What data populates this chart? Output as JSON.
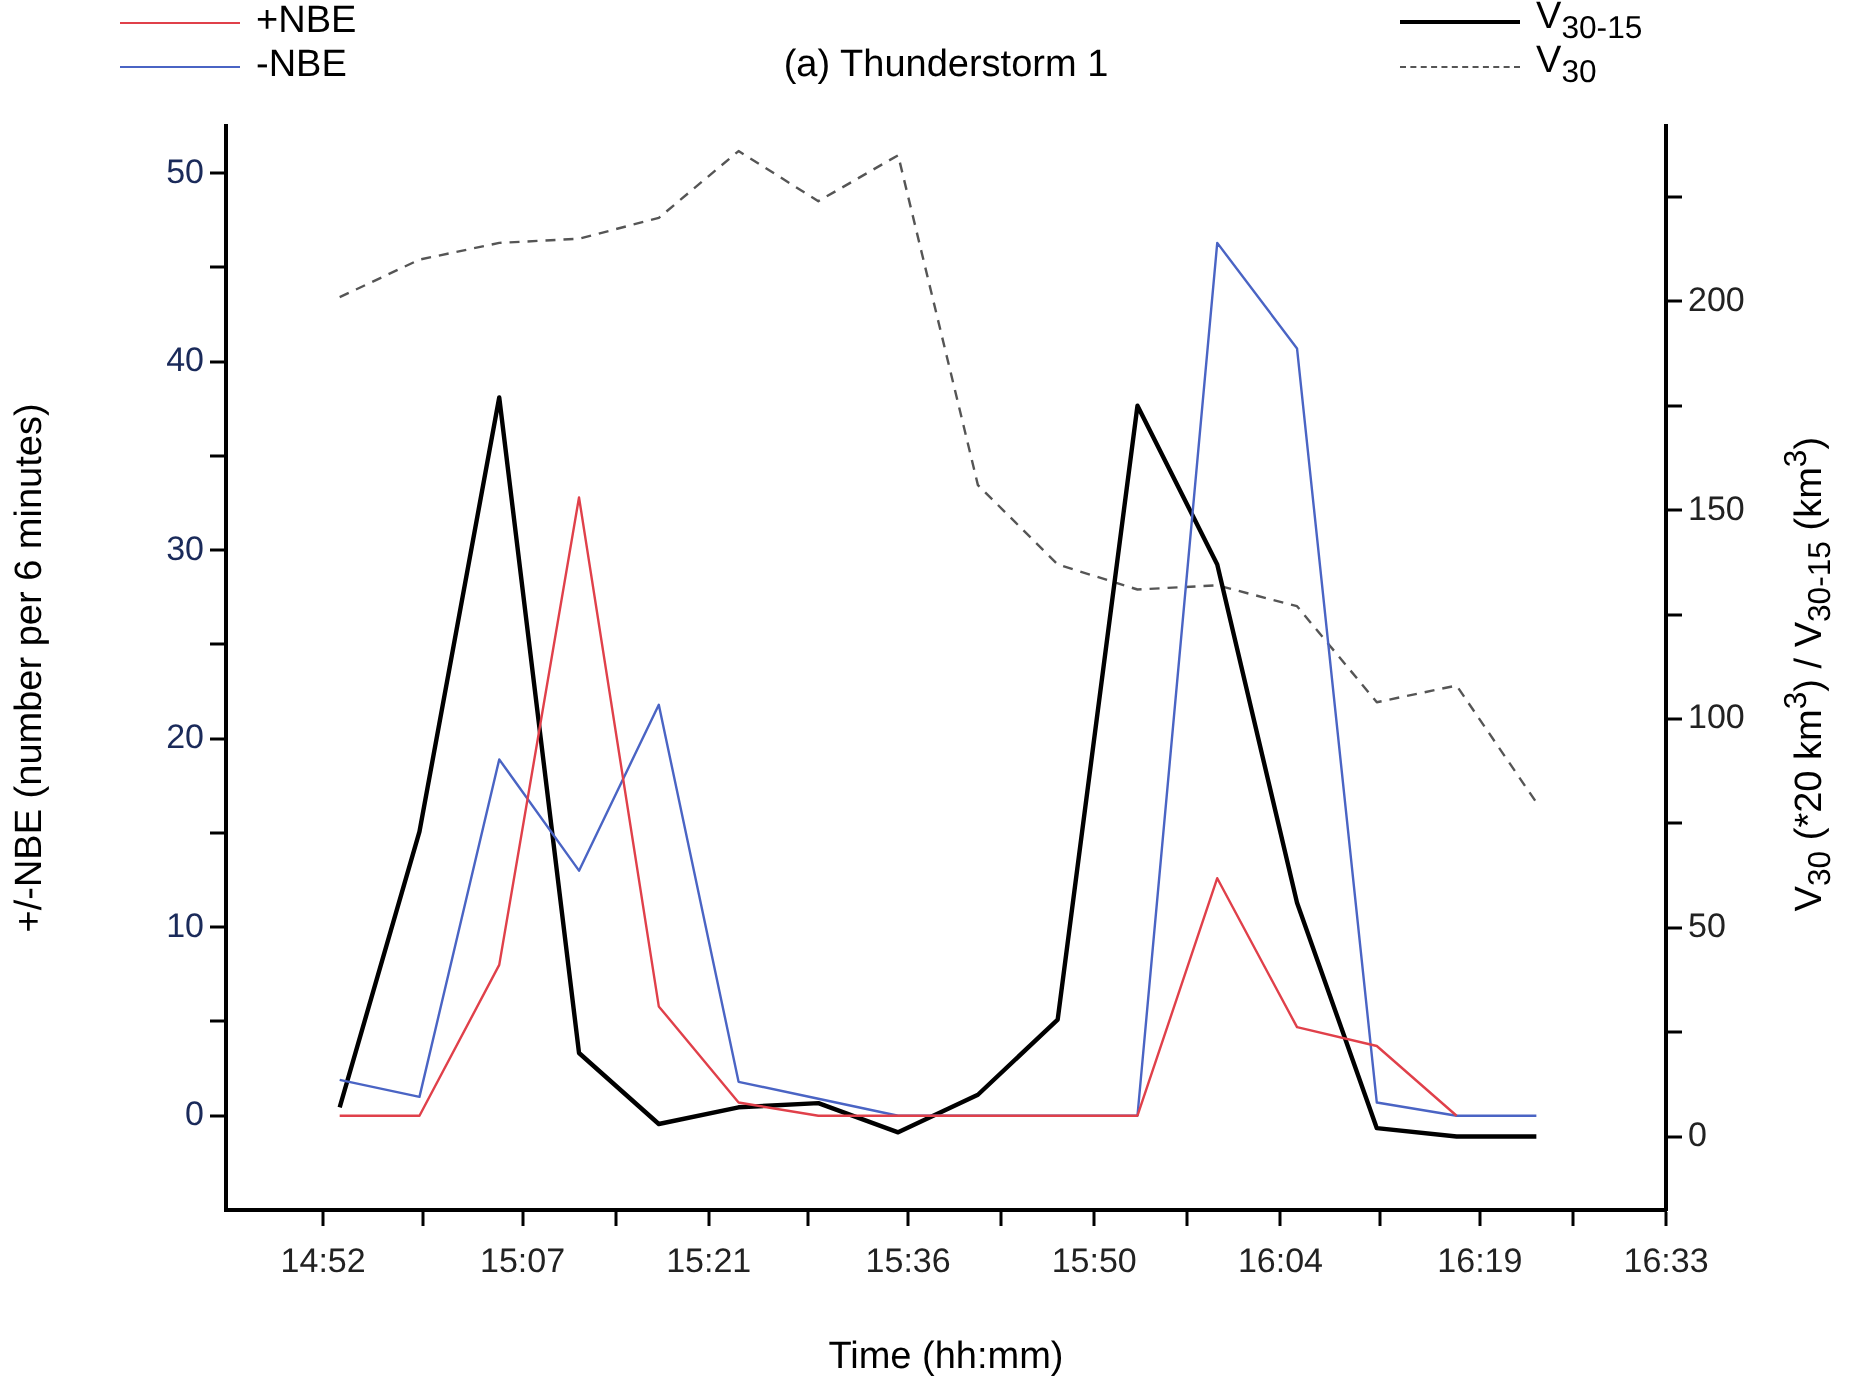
{
  "chart_data": {
    "type": "line",
    "title": "(a) Thunderstorm 1",
    "xlabel": "Time (hh:mm)",
    "ylabel": "+/-NBE (number per 6 minutes)",
    "y2label": "V$_{30}$ (*20 km$^{3}$) / V$_{30-15}$ (km$^{3}$)",
    "x": [
      14.8875,
      14.9875,
      15.0875,
      15.1875,
      15.2875,
      15.3875,
      15.4875,
      15.5875,
      15.6875,
      15.7875,
      15.8875,
      15.9875,
      16.0875,
      16.1875,
      16.2875,
      16.3875
    ],
    "series": [
      {
        "name": "+NBE",
        "color": "#e0404a",
        "values": [
          0,
          0,
          8,
          32.8,
          5.8,
          0.7,
          0,
          0,
          0,
          0,
          0,
          12.6,
          4.7,
          3.7,
          0,
          null
        ]
      },
      {
        "name": "-NBE",
        "color": "#4a64c4",
        "values": [
          1.9,
          1,
          18.9,
          13,
          21.8,
          1.8,
          0.9,
          0,
          0,
          0,
          0,
          46.3,
          40.7,
          0.7,
          0,
          0
        ]
      },
      {
        "name": "V$_{30-15}$",
        "color": "#000000",
        "axis": "y2",
        "values": [
          7,
          73,
          177,
          20,
          3,
          7,
          8,
          1,
          10,
          28,
          175,
          137,
          56,
          2,
          0,
          0
        ]
      },
      {
        "name": "V$_{30}$",
        "color": "#555555",
        "axis": "y2",
        "line_style": "dashed",
        "values": [
          201,
          210,
          214,
          215,
          220,
          236,
          224,
          235,
          156,
          137,
          131,
          132,
          127,
          104,
          108,
          80
        ]
      }
    ],
    "xlim": [
      14.745,
      16.55
    ],
    "xticks": [
      {
        "value": 14.8667,
        "label": "14:52"
      },
      {
        "value": 14.9917,
        "label": null
      },
      {
        "value": 15.1167,
        "label": "15:07"
      },
      {
        "value": 15.2333,
        "label": null
      },
      {
        "value": 15.35,
        "label": "15:21"
      },
      {
        "value": 15.475,
        "label": null
      },
      {
        "value": 15.6,
        "label": "15:36"
      },
      {
        "value": 15.7167,
        "label": null
      },
      {
        "value": 15.8333,
        "label": "15:50"
      },
      {
        "value": 15.95,
        "label": null
      },
      {
        "value": 16.0667,
        "label": "16:04"
      },
      {
        "value": 16.1917,
        "label": null
      },
      {
        "value": 16.3167,
        "label": "16:19"
      },
      {
        "value": 16.4333,
        "label": null
      },
      {
        "value": 16.55,
        "label": "16:33"
      }
    ],
    "ylim": [
      -5,
      52.5
    ],
    "yticks": [
      0,
      {
        "value": 5,
        "label": null
      },
      10,
      {
        "value": 15,
        "label": null
      },
      20,
      {
        "value": 25,
        "label": null
      },
      30,
      {
        "value": 35,
        "label": null
      },
      40,
      {
        "value": 45,
        "label": null
      },
      50
    ],
    "y2lim": [
      -17.6,
      242
    ],
    "y2ticks": [
      0,
      {
        "value": 25,
        "label": null
      },
      50,
      {
        "value": 75,
        "label": null
      },
      100,
      {
        "value": 125,
        "label": null
      },
      150,
      {
        "value": 175,
        "label": null
      },
      200,
      {
        "value": 225,
        "label": null
      }
    ],
    "legend": "top",
    "grid": false,
    "marker": "none",
    "line_style": "solid"
  }
}
